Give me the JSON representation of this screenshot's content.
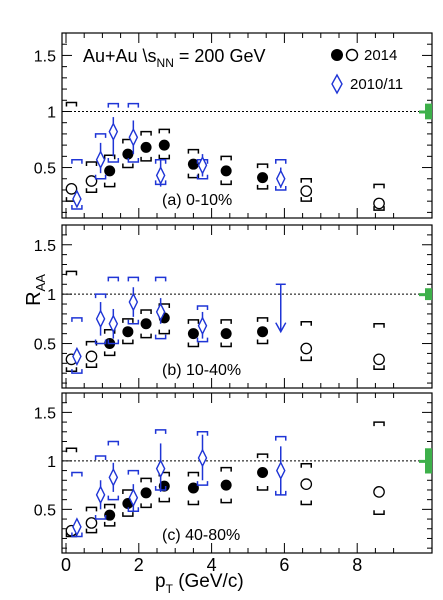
{
  "figure": {
    "ylabel_main": "R",
    "ylabel_sub": "AA",
    "xlabel_main": "p",
    "xlabel_sub": "T",
    "xlabel_unit": " (GeV/c)",
    "legend": {
      "system": "Au+Au  \\",
      "energy_main": "s",
      "energy_sub": "NN",
      "energy_value": " = 200 GeV",
      "entry_2014": "2014",
      "entry_2010": "2010/11"
    },
    "colors": {
      "filled": "#000000",
      "open": "#000000",
      "blue": "#1f35d6",
      "sys_green": "#3db04a",
      "axis": "#000000"
    },
    "x_ticks": [
      "0",
      "2",
      "4",
      "6",
      "8"
    ],
    "y_ticks": [
      "0.5",
      "1",
      "1.5"
    ]
  },
  "chart_data": [
    {
      "type": "scatter",
      "panel_label": "(a)  0-10%",
      "xlim": [
        -0.1,
        9.5
      ],
      "ylim": [
        0.05,
        1.7
      ],
      "reference_line": 1,
      "global_sys_band": [
        0.93,
        1.07
      ],
      "series": [
        {
          "name": "2014 filled",
          "marker": "filled-circle",
          "x": [
            1.2,
            1.7,
            2.2,
            2.7,
            3.5,
            4.4,
            5.4
          ],
          "y": [
            0.47,
            0.62,
            0.68,
            0.7,
            0.53,
            0.47,
            0.41
          ],
          "sys_lo": [
            0.33,
            0.5,
            0.56,
            0.58,
            0.41,
            0.35,
            0.31
          ],
          "sys_hi": [
            0.61,
            0.75,
            0.82,
            0.84,
            0.66,
            0.6,
            0.53
          ]
        },
        {
          "name": "2014 open",
          "marker": "open-circle",
          "x": [
            0.15,
            0.7,
            6.6,
            8.6
          ],
          "y": [
            0.31,
            0.38,
            0.29,
            0.18
          ],
          "sys_lo": [
            0.2,
            0.28,
            0.2,
            0.12
          ],
          "sys_hi": [
            1.08,
            0.55,
            0.4,
            0.35
          ]
        },
        {
          "name": "2010/11",
          "marker": "open-diamond",
          "x": [
            0.3,
            0.95,
            1.3,
            1.85,
            2.6,
            3.75,
            5.9
          ],
          "y": [
            0.22,
            0.57,
            0.82,
            0.77,
            0.43,
            0.52,
            0.4
          ],
          "err_lo": [
            0.17,
            0.45,
            0.6,
            0.62,
            0.33,
            0.42,
            0.32
          ],
          "err_hi": [
            0.27,
            0.72,
            0.95,
            0.92,
            0.57,
            0.62,
            0.5
          ],
          "sys_lo": [
            0.13,
            0.4,
            0.55,
            0.55,
            0.35,
            0.4,
            0.3
          ],
          "sys_hi": [
            0.57,
            0.8,
            1.07,
            1.07,
            0.57,
            0.57,
            0.57
          ]
        }
      ]
    },
    {
      "type": "scatter",
      "panel_label": "(b)  10-40%",
      "xlim": [
        -0.1,
        9.5
      ],
      "ylim": [
        0.05,
        1.7
      ],
      "reference_line": 1,
      "global_sys_band": [
        0.94,
        1.06
      ],
      "series": [
        {
          "name": "2014 filled",
          "marker": "filled-circle",
          "x": [
            1.2,
            1.7,
            2.2,
            2.7,
            3.5,
            4.4,
            5.4
          ],
          "y": [
            0.5,
            0.62,
            0.7,
            0.76,
            0.6,
            0.6,
            0.62
          ],
          "sys_lo": [
            0.38,
            0.5,
            0.56,
            0.6,
            0.47,
            0.47,
            0.5
          ],
          "sys_hi": [
            0.64,
            0.75,
            0.84,
            0.9,
            0.74,
            0.74,
            0.76
          ]
        },
        {
          "name": "2014 open",
          "marker": "open-circle",
          "x": [
            0.15,
            0.7,
            6.6,
            8.6
          ],
          "y": [
            0.34,
            0.37,
            0.45,
            0.34
          ],
          "sys_lo": [
            0.22,
            0.26,
            0.33,
            0.24
          ],
          "sys_hi": [
            1.23,
            0.52,
            0.72,
            0.7
          ]
        },
        {
          "name": "2010/11",
          "marker": "open-diamond",
          "x": [
            0.3,
            0.95,
            1.3,
            1.85,
            2.6,
            3.75
          ],
          "y": [
            0.37,
            0.75,
            0.7,
            0.92,
            0.82,
            0.68
          ],
          "err_lo": [
            0.3,
            0.58,
            0.55,
            0.77,
            0.7,
            0.55
          ],
          "err_hi": [
            0.44,
            0.92,
            0.85,
            1.07,
            0.96,
            0.82
          ],
          "sys_lo": [
            0.2,
            0.5,
            0.5,
            0.7,
            0.55,
            0.52
          ],
          "sys_hi": [
            0.76,
            1.0,
            1.17,
            1.17,
            1.17,
            0.88
          ]
        },
        {
          "name": "2010/11 upper limit",
          "marker": "arrow-down",
          "x": [
            5.9
          ],
          "y_top": [
            1.1
          ],
          "y_bottom": [
            0.62
          ]
        }
      ]
    },
    {
      "type": "scatter",
      "panel_label": "(c)  40-80%",
      "xlim": [
        -0.1,
        9.5
      ],
      "ylim": [
        0.05,
        1.7
      ],
      "reference_line": 1,
      "global_sys_band": [
        0.87,
        1.13
      ],
      "series": [
        {
          "name": "2014 filled",
          "marker": "filled-circle",
          "x": [
            1.2,
            1.7,
            2.2,
            2.7,
            3.5,
            4.4,
            5.4
          ],
          "y": [
            0.44,
            0.56,
            0.67,
            0.74,
            0.72,
            0.75,
            0.88
          ],
          "sys_lo": [
            0.33,
            0.43,
            0.52,
            0.58,
            0.55,
            0.57,
            0.7
          ],
          "sys_hi": [
            0.55,
            0.7,
            0.82,
            0.88,
            0.88,
            0.93,
            1.07
          ]
        },
        {
          "name": "2014 open",
          "marker": "open-circle",
          "x": [
            0.15,
            0.7,
            6.6,
            8.6
          ],
          "y": [
            0.28,
            0.36,
            0.76,
            0.68
          ],
          "sys_lo": [
            0.22,
            0.26,
            0.55,
            0.45
          ],
          "sys_hi": [
            1.13,
            0.52,
            0.97,
            1.4
          ]
        },
        {
          "name": "2010/11",
          "marker": "open-diamond",
          "x": [
            0.3,
            0.95,
            1.3,
            1.85,
            2.6,
            3.75,
            5.9
          ],
          "y": [
            0.32,
            0.65,
            0.83,
            0.62,
            0.92,
            1.03,
            0.9
          ],
          "err_lo": [
            0.24,
            0.5,
            0.68,
            0.48,
            0.68,
            0.8,
            0.65
          ],
          "err_hi": [
            0.4,
            0.8,
            0.98,
            0.76,
            1.18,
            1.27,
            1.15
          ],
          "sys_lo": [
            0.22,
            0.4,
            0.6,
            0.48,
            0.7,
            0.75,
            0.65
          ],
          "sys_hi": [
            0.88,
            1.05,
            1.2,
            0.9,
            1.32,
            1.3,
            1.25
          ]
        }
      ]
    }
  ]
}
